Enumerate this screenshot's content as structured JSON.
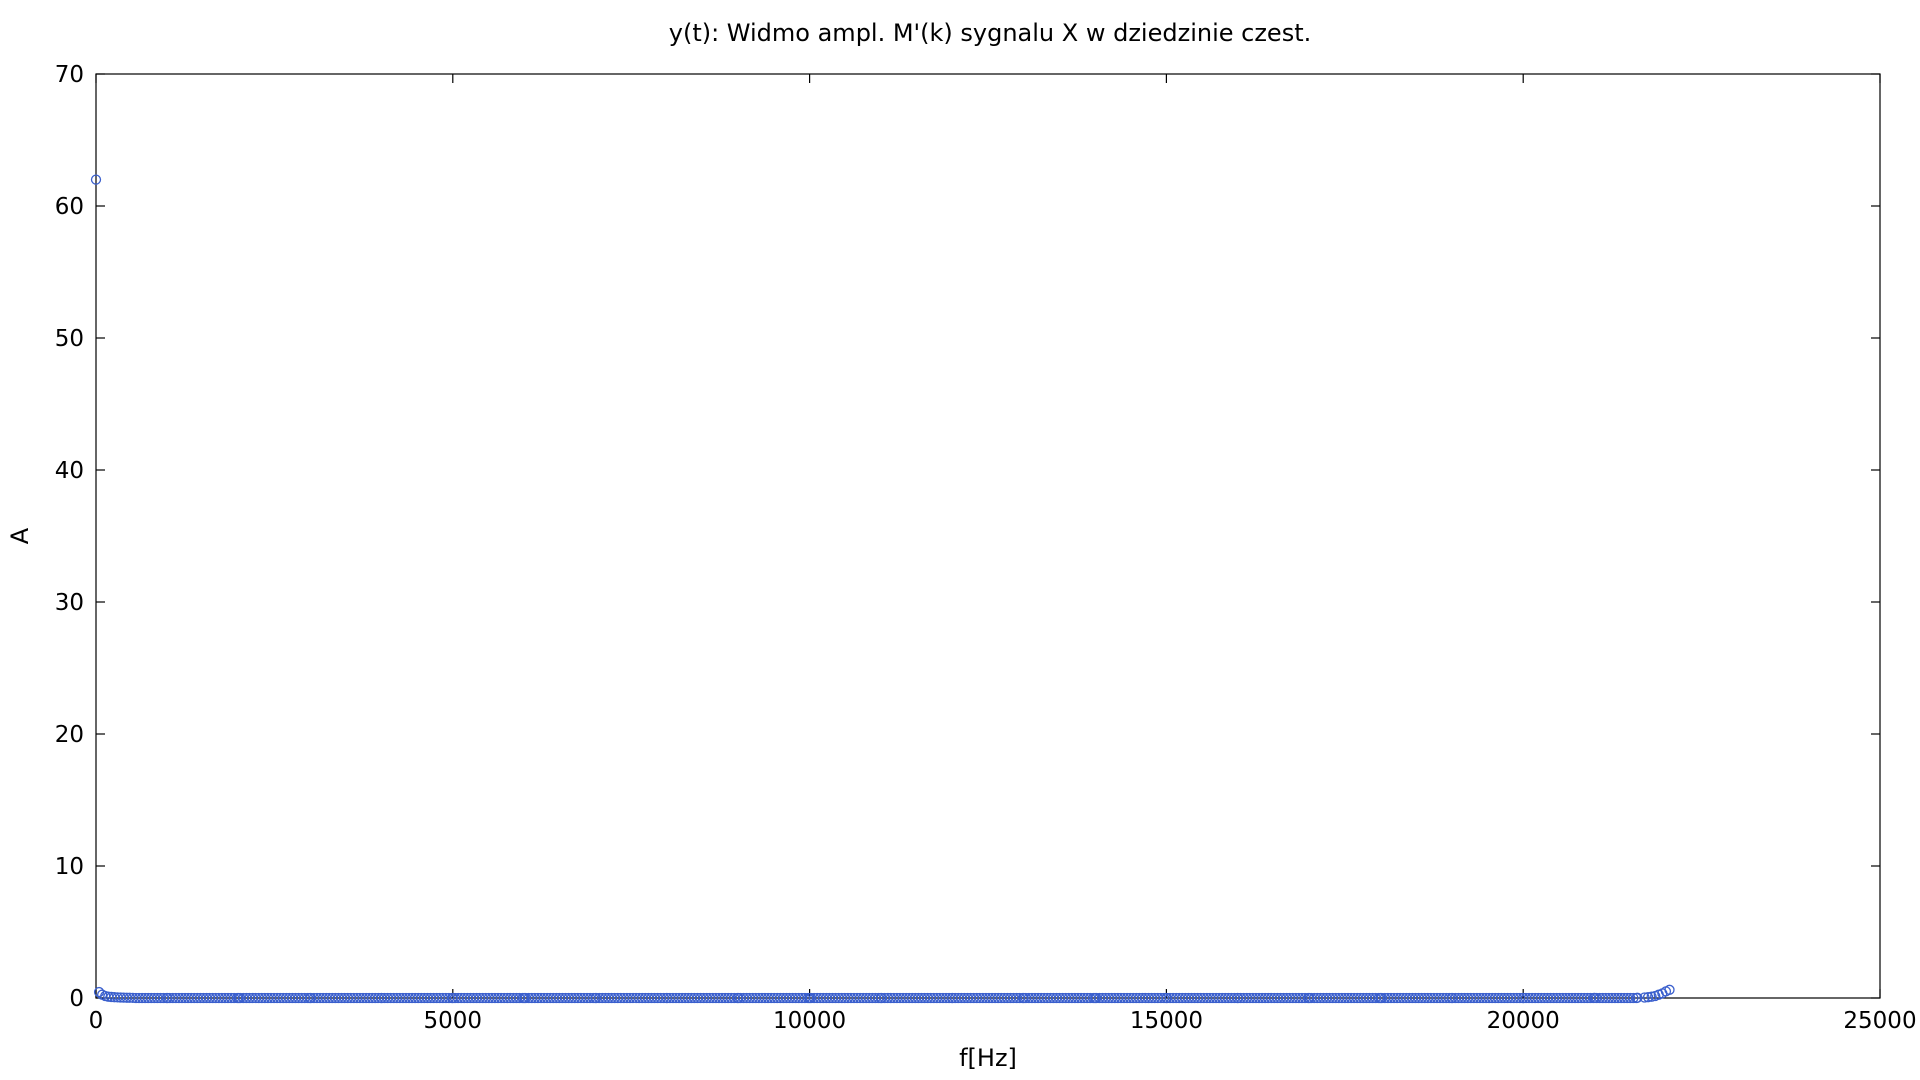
{
  "chart_data": {
    "type": "scatter",
    "title": "y(t): Widmo ampl. M'(k) sygnalu X w dziedzinie czest.",
    "xlabel": "f[Hz]",
    "ylabel": "A",
    "xlim": [
      0,
      25000
    ],
    "ylim": [
      0,
      70
    ],
    "xticks": [
      0,
      5000,
      10000,
      15000,
      20000,
      25000
    ],
    "yticks": [
      0,
      10,
      20,
      30,
      40,
      50,
      60,
      70
    ],
    "grid": false,
    "legend": "none",
    "marker": "open-circle",
    "color": "#3a5fcd",
    "series": [
      {
        "x": [
          0,
          43,
          86,
          129,
          172,
          215,
          258,
          301,
          344,
          387,
          430,
          473,
          516,
          1000,
          2000,
          3000,
          4000,
          5000,
          6000,
          7000,
          8000,
          9000,
          10000,
          11000,
          12000,
          13000,
          14000,
          15000,
          16000,
          17000,
          18000,
          19000,
          20000,
          21000,
          21600,
          21700,
          21750,
          21800,
          21850,
          21900,
          21950,
          22000,
          22050
        ],
        "y": [
          62,
          0.45,
          0.25,
          0.15,
          0.1,
          0.08,
          0.06,
          0.05,
          0.04,
          0.03,
          0.02,
          0.02,
          0.01,
          0,
          0,
          0,
          0,
          0,
          0,
          0,
          0,
          0,
          0,
          0,
          0,
          0,
          0,
          0,
          0,
          0,
          0,
          0,
          0,
          0.01,
          0.02,
          0.04,
          0.06,
          0.1,
          0.15,
          0.25,
          0.35,
          0.5,
          0.62
        ]
      }
    ]
  }
}
